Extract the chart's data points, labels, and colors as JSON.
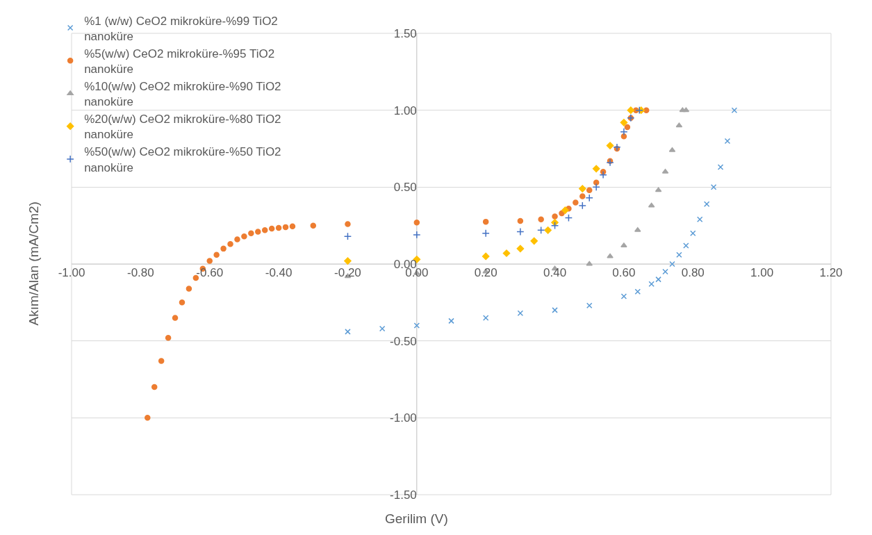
{
  "chart_data": {
    "type": "scatter",
    "xlabel": "Gerilim (V)",
    "ylabel": "Akım/Alan (mA/Cm2)",
    "xlim": [
      -1.0,
      1.2
    ],
    "ylim": [
      -1.5,
      1.5
    ],
    "xticks": [
      {
        "value": -1.0,
        "label": "-1.00"
      },
      {
        "value": -0.8,
        "label": "-0.80"
      },
      {
        "value": -0.6,
        "label": "-0.60"
      },
      {
        "value": -0.4,
        "label": "-0.40"
      },
      {
        "value": -0.2,
        "label": "-0.20"
      },
      {
        "value": 0,
        "label": "0.00"
      },
      {
        "value": 0.2,
        "label": "0.20"
      },
      {
        "value": 0.4,
        "label": "0.40"
      },
      {
        "value": 0.6,
        "label": "0.60"
      },
      {
        "value": 0.8,
        "label": "0.80"
      },
      {
        "value": 1.0,
        "label": "1.00"
      },
      {
        "value": 1.2,
        "label": "1.20"
      }
    ],
    "yticks": [
      {
        "value": -1.5,
        "label": "-1.50"
      },
      {
        "value": -1.0,
        "label": "-1.00"
      },
      {
        "value": -0.5,
        "label": "-0.50"
      },
      {
        "value": 0,
        "label": "0.00"
      },
      {
        "value": 0.5,
        "label": "0.50"
      },
      {
        "value": 1.0,
        "label": "1.00"
      },
      {
        "value": 1.5,
        "label": "1.50"
      }
    ],
    "grid": "y",
    "legend": "top left",
    "series": [
      {
        "name": "%1 (w/w) CeO2 mikroküre-%99 TiO2 nanoküre",
        "color": "#5b9bd5",
        "marker": "cross",
        "x": [
          -0.2,
          -0.1,
          0.0,
          0.1,
          0.2,
          0.3,
          0.4,
          0.5,
          0.6,
          0.64,
          0.68,
          0.7,
          0.72,
          0.74,
          0.76,
          0.78,
          0.8,
          0.82,
          0.84,
          0.86,
          0.88,
          0.9,
          0.92
        ],
        "values": [
          -0.44,
          -0.42,
          -0.4,
          -0.37,
          -0.35,
          -0.32,
          -0.3,
          -0.27,
          -0.21,
          -0.18,
          -0.13,
          -0.1,
          -0.05,
          0.0,
          0.06,
          0.12,
          0.2,
          0.29,
          0.39,
          0.5,
          0.63,
          0.8,
          1.0
        ]
      },
      {
        "name": "%5(w/w) CeO2 mikroküre-%95 TiO2 nanoküre",
        "color": "#ed7d31",
        "marker": "circle",
        "x": [
          -0.78,
          -0.76,
          -0.74,
          -0.72,
          -0.7,
          -0.68,
          -0.66,
          -0.64,
          -0.62,
          -0.6,
          -0.58,
          -0.56,
          -0.54,
          -0.52,
          -0.5,
          -0.48,
          -0.46,
          -0.44,
          -0.42,
          -0.4,
          -0.38,
          -0.36,
          -0.3,
          -0.2,
          0.0,
          0.2,
          0.3,
          0.36,
          0.4,
          0.42,
          0.44,
          0.46,
          0.48,
          0.5,
          0.52,
          0.54,
          0.56,
          0.58,
          0.6,
          0.61,
          0.62,
          0.635,
          0.665
        ],
        "values": [
          -1.0,
          -0.8,
          -0.63,
          -0.48,
          -0.35,
          -0.25,
          -0.16,
          -0.09,
          -0.03,
          0.02,
          0.06,
          0.1,
          0.13,
          0.16,
          0.18,
          0.2,
          0.21,
          0.22,
          0.23,
          0.235,
          0.24,
          0.245,
          0.25,
          0.26,
          0.27,
          0.275,
          0.28,
          0.29,
          0.31,
          0.33,
          0.36,
          0.4,
          0.44,
          0.48,
          0.53,
          0.6,
          0.67,
          0.75,
          0.83,
          0.89,
          0.95,
          1.0,
          1.0
        ]
      },
      {
        "name": "%10(w/w) CeO2 mikroküre-%90 TiO2 nanoküre",
        "color": "#a5a5a5",
        "marker": "triangle",
        "x": [
          -0.2,
          0.0,
          0.2,
          0.4,
          0.5,
          0.56,
          0.6,
          0.64,
          0.68,
          0.7,
          0.72,
          0.74,
          0.76,
          0.77,
          0.78
        ],
        "values": [
          -0.08,
          -0.06,
          -0.05,
          -0.03,
          0.0,
          0.05,
          0.12,
          0.22,
          0.38,
          0.48,
          0.6,
          0.74,
          0.9,
          1.0,
          1.0
        ]
      },
      {
        "name": "%20(w/w) CeO2 mikroküre-%80 TiO2 nanoküre",
        "color": "#ffc000",
        "marker": "diamond",
        "x": [
          -0.2,
          0.0,
          0.2,
          0.26,
          0.3,
          0.34,
          0.38,
          0.4,
          0.43,
          0.48,
          0.52,
          0.56,
          0.6,
          0.62,
          0.65
        ],
        "values": [
          0.02,
          0.03,
          0.05,
          0.07,
          0.1,
          0.15,
          0.22,
          0.27,
          0.35,
          0.49,
          0.62,
          0.77,
          0.92,
          1.0,
          1.0
        ]
      },
      {
        "name": "%50(w/w) CeO2 mikroküre-%50 TiO2 nanoküre",
        "color": "#4472c4",
        "marker": "cross",
        "x": [
          -0.2,
          0.0,
          0.2,
          0.3,
          0.36,
          0.4,
          0.44,
          0.48,
          0.5,
          0.52,
          0.54,
          0.56,
          0.58,
          0.6,
          0.62,
          0.645
        ],
        "values": [
          0.18,
          0.19,
          0.2,
          0.21,
          0.22,
          0.25,
          0.3,
          0.38,
          0.43,
          0.5,
          0.58,
          0.66,
          0.76,
          0.86,
          0.95,
          1.0
        ]
      }
    ]
  }
}
